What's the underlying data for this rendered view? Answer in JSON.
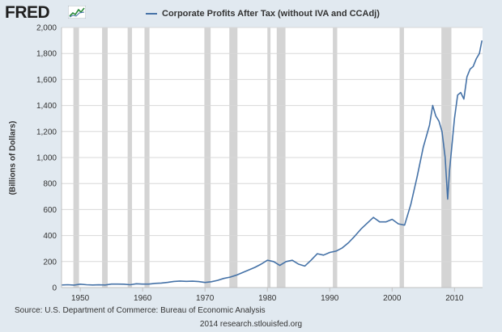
{
  "logo": {
    "text": "FRED",
    "icon": "line-chart-icon"
  },
  "source_text": "Source: U.S. Department of Commerce: Bureau of Economic Analysis",
  "credit_text": "2014 research.stlouisfed.org",
  "colors": {
    "line": "#4572a7",
    "recession": "#d4d4d4",
    "background": "#e1e9f0",
    "plot": "#ffffff"
  },
  "chart_data": {
    "type": "line",
    "title": "",
    "xlabel": "",
    "ylabel": "(Billions of Dollars)",
    "xlim": [
      1947,
      2014.5
    ],
    "ylim": [
      0,
      2000
    ],
    "grid": true,
    "legend": "top",
    "xticks": [
      1950,
      1960,
      1970,
      1980,
      1990,
      2000,
      2010
    ],
    "xtick_labels": [
      "1950",
      "1960",
      "1970",
      "1980",
      "1990",
      "2000",
      "2010"
    ],
    "yticks": [
      0,
      200,
      400,
      600,
      800,
      1000,
      1200,
      1400,
      1600,
      1800,
      2000
    ],
    "ytick_labels": [
      "0",
      "200",
      "400",
      "600",
      "800",
      "1,000",
      "1,200",
      "1,400",
      "1,600",
      "1,800",
      "2,000"
    ],
    "recessions": [
      [
        1948.9,
        1949.8
      ],
      [
        1953.5,
        1954.4
      ],
      [
        1957.6,
        1958.3
      ],
      [
        1960.3,
        1961.1
      ],
      [
        1969.9,
        1970.9
      ],
      [
        1973.9,
        1975.2
      ],
      [
        1980.0,
        1980.5
      ],
      [
        1981.5,
        1982.9
      ],
      [
        1990.5,
        1991.2
      ],
      [
        2001.2,
        2001.9
      ],
      [
        2007.9,
        2009.5
      ]
    ],
    "series": [
      {
        "name": "Corporate Profits After Tax (without IVA and CCAdj)",
        "x": [
          1947,
          1948,
          1949,
          1950,
          1951,
          1952,
          1953,
          1954,
          1955,
          1956,
          1957,
          1958,
          1959,
          1960,
          1961,
          1962,
          1963,
          1964,
          1965,
          1966,
          1967,
          1968,
          1969,
          1970,
          1971,
          1972,
          1973,
          1974,
          1975,
          1976,
          1977,
          1978,
          1979,
          1980,
          1981,
          1982,
          1983,
          1984,
          1985,
          1986,
          1987,
          1988,
          1989,
          1990,
          1991,
          1992,
          1993,
          1994,
          1995,
          1996,
          1997,
          1998,
          1999,
          2000,
          2001,
          2002,
          2003,
          2004,
          2005,
          2006,
          2006.5,
          2007,
          2007.5,
          2008,
          2008.5,
          2008.9,
          2009.2,
          2009.5,
          2010,
          2010.5,
          2011,
          2011.5,
          2012,
          2012.5,
          2013,
          2013.5,
          2014,
          2014.4
        ],
        "values": [
          20,
          22,
          19,
          26,
          22,
          20,
          21,
          20,
          27,
          27,
          26,
          22,
          29,
          27,
          27,
          32,
          35,
          40,
          47,
          50,
          48,
          49,
          46,
          39,
          45,
          55,
          70,
          80,
          95,
          115,
          135,
          155,
          180,
          210,
          200,
          170,
          200,
          210,
          180,
          165,
          210,
          260,
          250,
          270,
          280,
          305,
          345,
          395,
          450,
          495,
          540,
          505,
          505,
          525,
          490,
          480,
          640,
          850,
          1080,
          1250,
          1400,
          1320,
          1280,
          1200,
          1000,
          680,
          900,
          1050,
          1300,
          1480,
          1500,
          1450,
          1620,
          1680,
          1700,
          1760,
          1800,
          1900
        ]
      }
    ]
  }
}
